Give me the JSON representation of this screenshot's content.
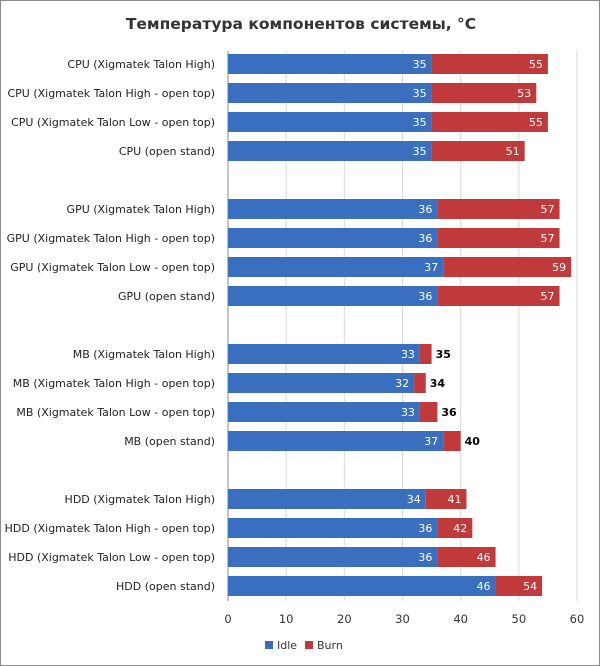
{
  "chart_data": {
    "type": "bar",
    "orientation": "horizontal",
    "title": "Температура компонентов системы, °C",
    "xlabel": "",
    "ylabel": "",
    "xlim": [
      0,
      60
    ],
    "xticks": [
      0,
      10,
      20,
      30,
      40,
      50,
      60
    ],
    "grid": true,
    "legend_position": "bottom",
    "colors": {
      "Idle": "#3a6fbf",
      "Burn": "#c0393b"
    },
    "groups": [
      {
        "categories": [
          "CPU (Xigmatek Talon High)",
          "CPU (Xigmatek Talon High - open top)",
          "CPU (Xigmatek Talon Low - open top)",
          "CPU (open stand)"
        ],
        "idle": [
          35,
          35,
          35,
          35
        ],
        "burn": [
          55,
          53,
          55,
          51
        ]
      },
      {
        "categories": [
          "GPU (Xigmatek Talon High)",
          "GPU (Xigmatek Talon High - open top)",
          "GPU (Xigmatek Talon Low - open top)",
          "GPU (open stand)"
        ],
        "idle": [
          36,
          36,
          37,
          36
        ],
        "burn": [
          57,
          57,
          59,
          57
        ]
      },
      {
        "categories": [
          "MB (Xigmatek Talon High)",
          "MB (Xigmatek Talon High - open top)",
          "MB (Xigmatek Talon Low - open top)",
          "MB (open stand)"
        ],
        "idle": [
          33,
          32,
          33,
          37
        ],
        "burn": [
          35,
          34,
          36,
          40
        ]
      },
      {
        "categories": [
          "HDD (Xigmatek Talon High)",
          "HDD (Xigmatek Talon High - open top)",
          "HDD (Xigmatek Talon Low - open top)",
          "HDD (open stand)"
        ],
        "idle": [
          34,
          36,
          36,
          46
        ],
        "burn": [
          41,
          42,
          46,
          54
        ]
      }
    ],
    "legend": [
      "Idle",
      "Burn"
    ]
  }
}
